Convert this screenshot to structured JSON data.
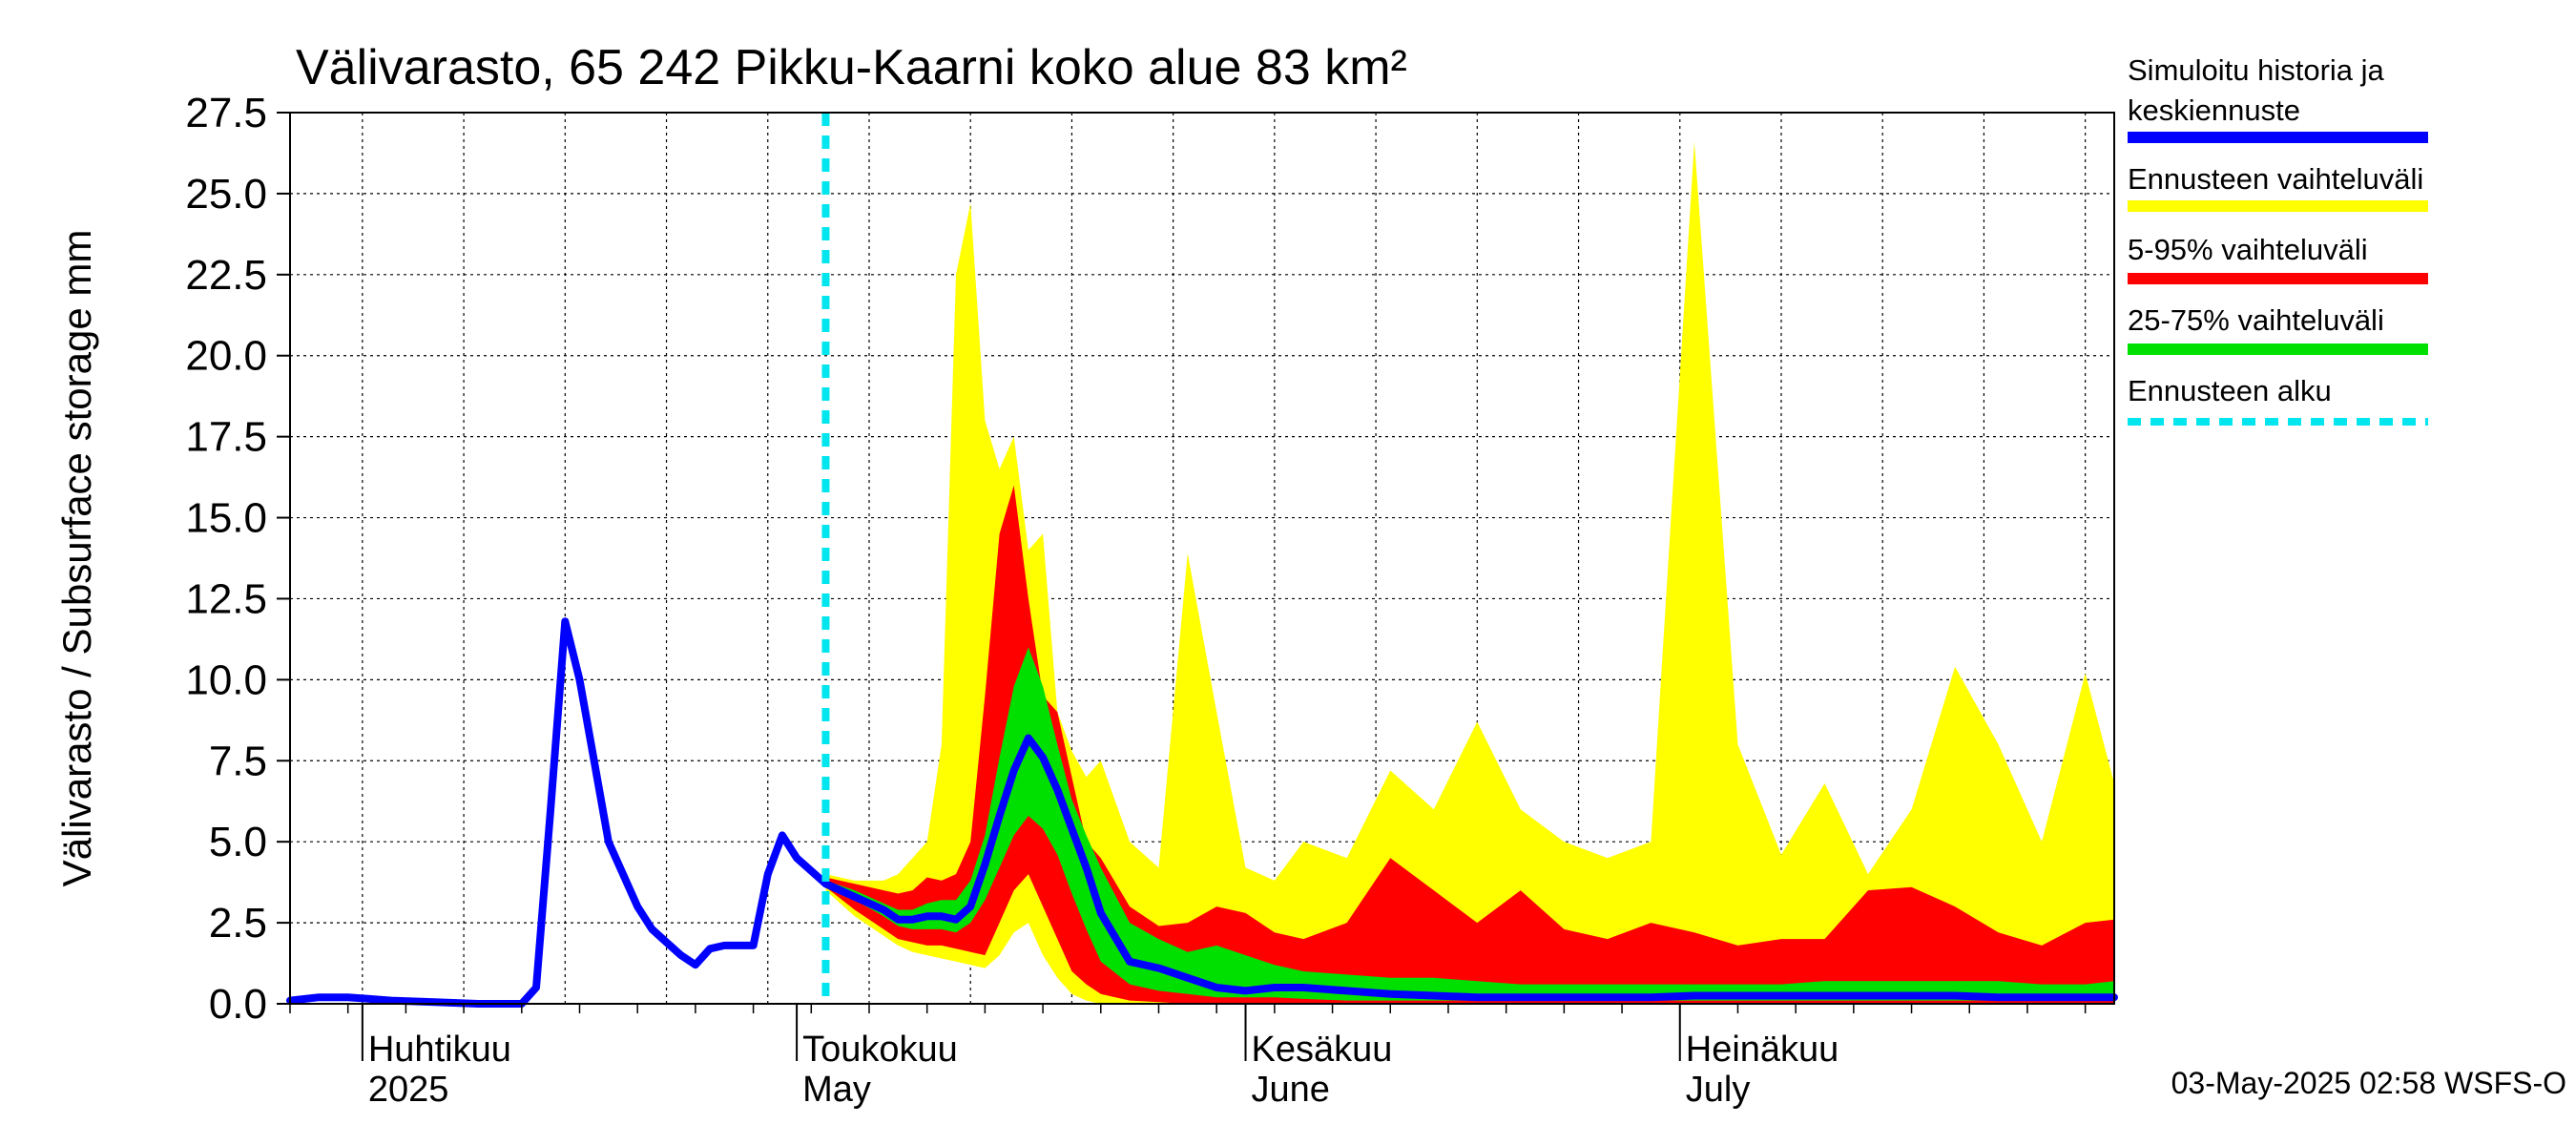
{
  "chart_data": {
    "type": "area",
    "title": "Välivarasto, 65 242 Pikku-Kaarni koko alue 83 km²",
    "ylabel": "Välivarasto / Subsurface storage  mm",
    "ylim": [
      0,
      27.5
    ],
    "yticks": [
      "0.0",
      "2.5",
      "5.0",
      "7.5",
      "10.0",
      "12.5",
      "15.0",
      "17.5",
      "20.0",
      "22.5",
      "25.0",
      "27.5"
    ],
    "x_start": "2025-03-27",
    "x_end": "2025-07-31",
    "forecast_start": "2025-05-03",
    "months": [
      {
        "date": "2025-04-01",
        "label": "Huhtikuu",
        "sub": "2025"
      },
      {
        "date": "2025-05-01",
        "label": "Toukokuu",
        "sub": "May"
      },
      {
        "date": "2025-06-01",
        "label": "Kesäkuu",
        "sub": "June"
      },
      {
        "date": "2025-07-01",
        "label": "Heinäkuu",
        "sub": "July"
      }
    ],
    "history": {
      "dates": [
        "2025-03-27",
        "2025-03-29",
        "2025-03-31",
        "2025-04-03",
        "2025-04-06",
        "2025-04-09",
        "2025-04-12",
        "2025-04-13",
        "2025-04-14",
        "2025-04-15",
        "2025-04-16",
        "2025-04-17",
        "2025-04-18",
        "2025-04-19",
        "2025-04-20",
        "2025-04-21",
        "2025-04-22",
        "2025-04-23",
        "2025-04-24",
        "2025-04-25",
        "2025-04-26",
        "2025-04-27",
        "2025-04-28",
        "2025-04-29",
        "2025-04-30",
        "2025-05-01",
        "2025-05-02",
        "2025-05-03"
      ],
      "values": [
        0.1,
        0.2,
        0.2,
        0.1,
        0.05,
        0.0,
        0.0,
        0.5,
        6.0,
        11.8,
        10.0,
        7.5,
        5.0,
        4.0,
        3.0,
        2.3,
        1.9,
        1.5,
        1.2,
        1.7,
        1.8,
        1.8,
        1.8,
        4.0,
        5.2,
        4.5,
        4.1,
        3.7
      ]
    },
    "forecast": {
      "dates": [
        "2025-05-03",
        "2025-05-05",
        "2025-05-07",
        "2025-05-08",
        "2025-05-09",
        "2025-05-10",
        "2025-05-11",
        "2025-05-12",
        "2025-05-13",
        "2025-05-14",
        "2025-05-15",
        "2025-05-16",
        "2025-05-17",
        "2025-05-18",
        "2025-05-19",
        "2025-05-20",
        "2025-05-21",
        "2025-05-22",
        "2025-05-24",
        "2025-05-26",
        "2025-05-28",
        "2025-05-30",
        "2025-06-01",
        "2025-06-03",
        "2025-06-05",
        "2025-06-08",
        "2025-06-11",
        "2025-06-14",
        "2025-06-17",
        "2025-06-20",
        "2025-06-23",
        "2025-06-26",
        "2025-06-29",
        "2025-07-02",
        "2025-07-05",
        "2025-07-08",
        "2025-07-11",
        "2025-07-14",
        "2025-07-17",
        "2025-07-20",
        "2025-07-23",
        "2025-07-26",
        "2025-07-29",
        "2025-07-31"
      ],
      "median": [
        3.7,
        3.3,
        2.9,
        2.6,
        2.6,
        2.7,
        2.7,
        2.6,
        3.0,
        4.3,
        5.8,
        7.2,
        8.2,
        7.6,
        6.6,
        5.4,
        4.2,
        2.8,
        1.3,
        1.1,
        0.8,
        0.5,
        0.4,
        0.5,
        0.5,
        0.4,
        0.3,
        0.25,
        0.2,
        0.2,
        0.2,
        0.2,
        0.2,
        0.25,
        0.25,
        0.25,
        0.25,
        0.25,
        0.25,
        0.25,
        0.2,
        0.2,
        0.2,
        0.2
      ],
      "p25": [
        3.7,
        3.2,
        2.7,
        2.4,
        2.3,
        2.3,
        2.3,
        2.2,
        2.5,
        3.2,
        4.2,
        5.2,
        5.8,
        5.4,
        4.6,
        3.4,
        2.3,
        1.3,
        0.6,
        0.4,
        0.3,
        0.2,
        0.2,
        0.2,
        0.15,
        0.1,
        0.1,
        0.1,
        0.1,
        0.1,
        0.1,
        0.1,
        0.1,
        0.1,
        0.1,
        0.1,
        0.1,
        0.1,
        0.1,
        0.1,
        0.1,
        0.1,
        0.1,
        0.1
      ],
      "p75": [
        3.8,
        3.5,
        3.1,
        2.9,
        2.9,
        3.1,
        3.2,
        3.2,
        3.8,
        5.2,
        7.6,
        9.8,
        11.0,
        9.8,
        8.0,
        6.3,
        5.2,
        4.2,
        2.5,
        2.0,
        1.6,
        1.8,
        1.5,
        1.2,
        1.0,
        0.9,
        0.8,
        0.8,
        0.7,
        0.6,
        0.6,
        0.6,
        0.6,
        0.6,
        0.6,
        0.6,
        0.7,
        0.7,
        0.7,
        0.7,
        0.7,
        0.6,
        0.6,
        0.7
      ],
      "p5": [
        3.6,
        2.9,
        2.3,
        2.0,
        1.9,
        1.8,
        1.8,
        1.7,
        1.6,
        1.5,
        2.5,
        3.5,
        4.0,
        3.0,
        2.0,
        1.0,
        0.6,
        0.3,
        0.1,
        0.05,
        0.0,
        0.0,
        0.0,
        0.0,
        0.0,
        0.0,
        0.0,
        0.0,
        0.0,
        0.0,
        0.0,
        0.0,
        0.0,
        0.0,
        0.0,
        0.0,
        0.0,
        0.0,
        0.0,
        0.0,
        0.0,
        0.0,
        0.0,
        0.0
      ],
      "p95": [
        3.9,
        3.7,
        3.5,
        3.4,
        3.5,
        3.9,
        3.8,
        4.0,
        5.0,
        9.5,
        14.5,
        16.0,
        12.5,
        9.5,
        9.0,
        7.0,
        5.0,
        4.5,
        3.0,
        2.4,
        2.5,
        3.0,
        2.8,
        2.2,
        2.0,
        2.5,
        4.5,
        3.5,
        2.5,
        3.5,
        2.3,
        2.0,
        2.5,
        2.2,
        1.8,
        2.0,
        2.0,
        3.5,
        3.6,
        3.0,
        2.2,
        1.8,
        2.5,
        2.6
      ],
      "min": [
        3.5,
        2.7,
        2.1,
        1.8,
        1.6,
        1.5,
        1.4,
        1.3,
        1.2,
        1.1,
        1.5,
        2.2,
        2.5,
        1.5,
        0.8,
        0.3,
        0.1,
        0.0,
        0.0,
        0.0,
        0.0,
        0.0,
        0.0,
        0.0,
        0.0,
        0.0,
        0.0,
        0.0,
        0.0,
        0.0,
        0.0,
        0.0,
        0.0,
        0.0,
        0.0,
        0.0,
        0.0,
        0.0,
        0.0,
        0.0,
        0.0,
        0.0,
        0.0,
        0.0
      ],
      "max": [
        4.0,
        3.8,
        3.8,
        4.0,
        4.5,
        5.0,
        8.0,
        22.5,
        24.7,
        18.0,
        16.5,
        17.5,
        14.0,
        14.5,
        9.0,
        7.8,
        7.0,
        7.5,
        5.0,
        4.2,
        13.9,
        9.0,
        4.2,
        3.8,
        5.0,
        4.5,
        7.2,
        6.0,
        8.7,
        6.0,
        5.0,
        4.5,
        5.0,
        26.6,
        8.0,
        4.6,
        6.8,
        4.0,
        6.0,
        10.4,
        8.0,
        5.0,
        10.2,
        6.8
      ]
    },
    "legend": [
      {
        "label1": "Simuloitu historia ja",
        "label2": "keskiennuste",
        "color": "#0000ff"
      },
      {
        "label1": "Ennusteen vaihteluväli",
        "label2": "",
        "color": "#ffff00"
      },
      {
        "label1": "5-95% vaihteluväli",
        "label2": "",
        "color": "#ff0000"
      },
      {
        "label1": "25-75% vaihteluväli",
        "label2": "",
        "color": "#00e000"
      },
      {
        "label1": "Ennusteen alku",
        "label2": "",
        "color": "#00e5ee"
      }
    ],
    "timestamp": "03-May-2025 02:58 WSFS-O"
  }
}
